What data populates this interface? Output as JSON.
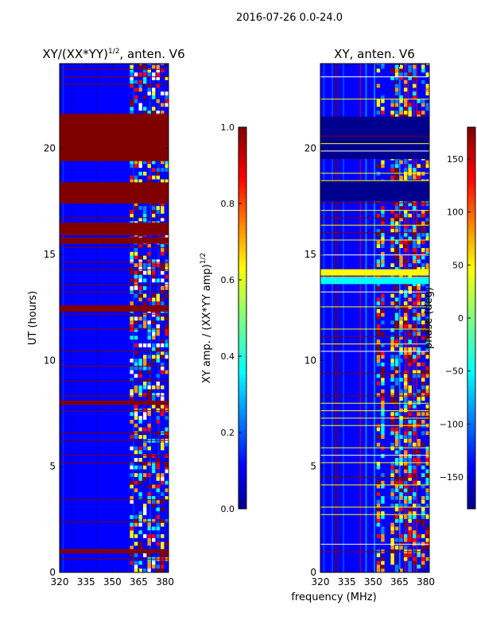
{
  "suptitle": "2016-07-26 0.0-24.0",
  "colors": {
    "dark_red": "#800000",
    "red": "#ff0000",
    "orange": "#ff9900",
    "yellow": "#ffff00",
    "cyan": "#00ffff",
    "light_blue": "#0080ff",
    "blue": "#0000ff",
    "navy": "#00008f",
    "white": "#ffffff"
  },
  "chart_data": [
    {
      "type": "heatmap",
      "id": "left",
      "title_main": "XY/(XX*YY)",
      "title_sup": "1/2",
      "title_suffix": ", anten. V6",
      "ylabel": "UT (hours)",
      "xlim": [
        320,
        382
      ],
      "ylim": [
        0,
        24
      ],
      "xticks": [
        320,
        335,
        350,
        365,
        380
      ],
      "yticks": [
        0,
        5,
        10,
        15,
        20
      ],
      "background": "#0000ff",
      "bands": [
        {
          "y0": 21.6,
          "y1": 19.4,
          "color": "#800000"
        },
        {
          "y0": 18.4,
          "y1": 17.4,
          "color": "#800000"
        },
        {
          "y0": 16.5,
          "y1": 15.9,
          "color": "#800000"
        },
        {
          "y0": 15.8,
          "y1": 15.5,
          "color": "#800000"
        },
        {
          "y0": 12.6,
          "y1": 12.3,
          "color": "#800000"
        },
        {
          "y0": 8.1,
          "y1": 7.9,
          "color": "#800000"
        },
        {
          "y0": 1.1,
          "y1": 0.9,
          "color": "#800000"
        }
      ],
      "hot_columns": [
        {
          "x0": 360,
          "x1": 382,
          "color": "#00ffff"
        }
      ]
    },
    {
      "type": "heatmap",
      "id": "right",
      "title": "XY, anten. V6",
      "xlabel": "frequency (MHz)",
      "xlim": [
        320,
        382
      ],
      "ylim": [
        0,
        24
      ],
      "xticks": [
        320,
        335,
        350,
        365,
        380
      ],
      "yticks": [
        0,
        5,
        10,
        15,
        20
      ],
      "background": "#0000ff",
      "bands": [
        {
          "y0": 21.5,
          "y1": 19.5,
          "color": "#00008f"
        },
        {
          "y0": 18.5,
          "y1": 17.5,
          "color": "#00008f"
        },
        {
          "y0": 14.3,
          "y1": 14.0,
          "color": "#ffff00"
        },
        {
          "y0": 13.9,
          "y1": 13.6,
          "color": "#00ffff"
        }
      ],
      "hot_columns": [
        {
          "x0": 352,
          "x1": 356,
          "color": "#800000"
        },
        {
          "x0": 360,
          "x1": 382,
          "color": "#ff9900"
        }
      ]
    },
    {
      "type": "colorbar",
      "id": "cbar_left",
      "label_main": "XY amp. / (XX*YY amp)",
      "label_sup": "1/2",
      "ticks": [
        0.0,
        0.2,
        0.4,
        0.6,
        0.8,
        1.0
      ],
      "tick_labels": [
        "0.0",
        "0.2",
        "0.4",
        "0.6",
        "0.8",
        "1.0"
      ],
      "range": [
        0,
        1
      ]
    },
    {
      "type": "colorbar",
      "id": "cbar_right",
      "label": "phase (deg)",
      "ticks": [
        150,
        100,
        50,
        0,
        -50,
        -100,
        -150
      ],
      "tick_labels": [
        "150",
        "100",
        "50",
        "0",
        "−50",
        "−100",
        "−150"
      ],
      "range": [
        -180,
        180
      ]
    }
  ]
}
